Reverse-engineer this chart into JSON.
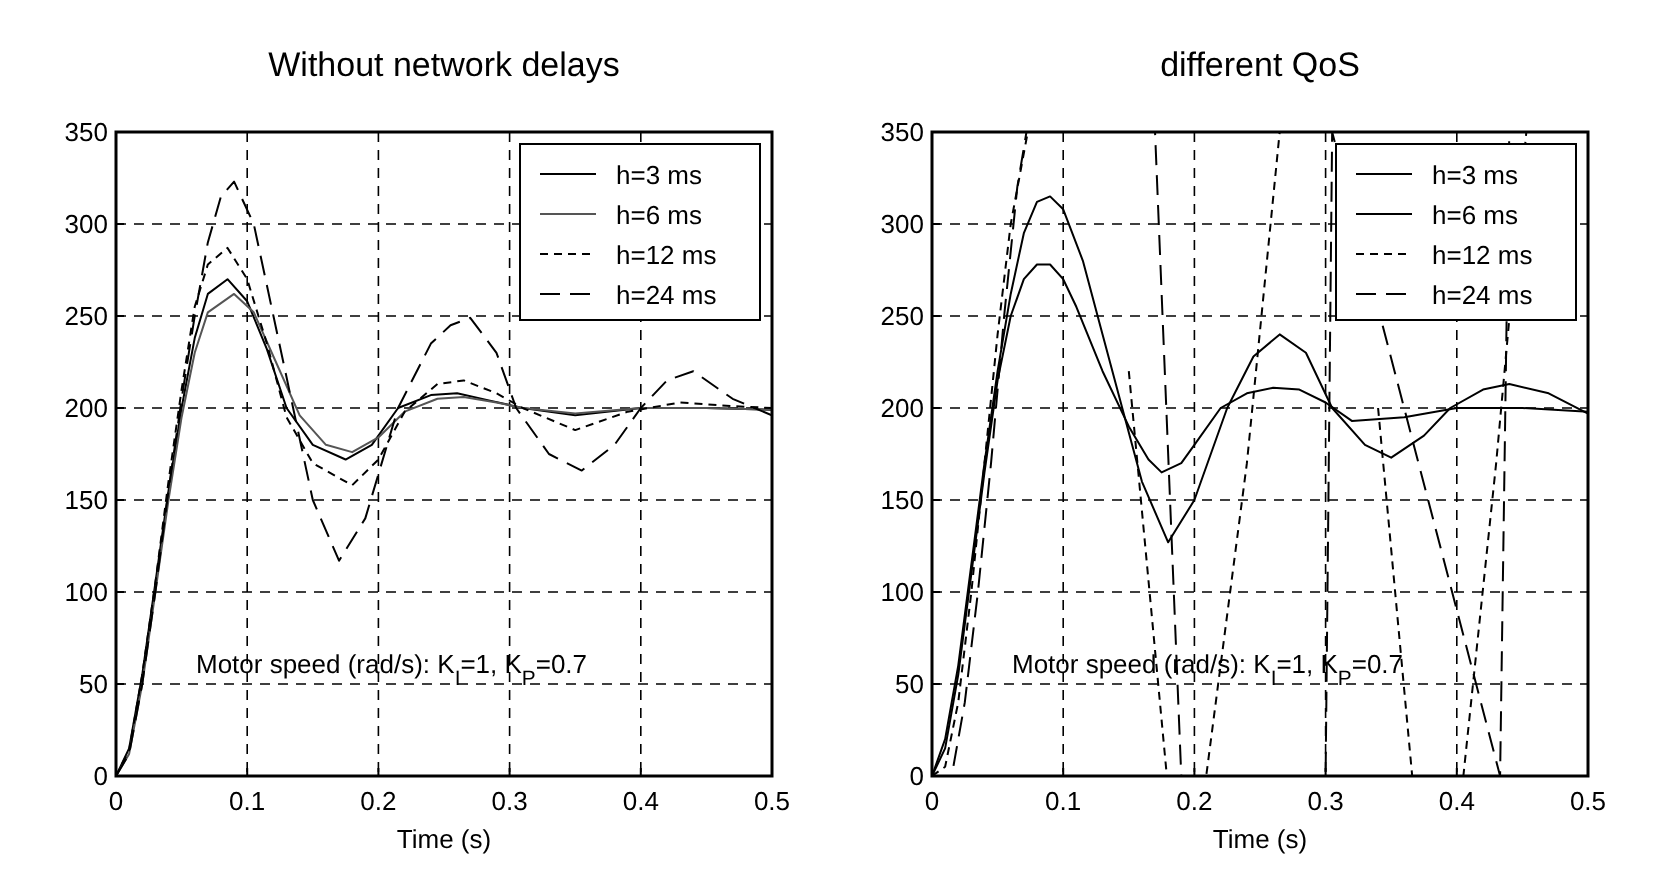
{
  "chart_data": [
    {
      "type": "line",
      "title": "Without network delays",
      "xlabel": "Time (s)",
      "xlim": [
        0,
        0.5
      ],
      "xticks": [
        0,
        0.1,
        0.2,
        0.3,
        0.4,
        0.5
      ],
      "ylim": [
        0,
        350
      ],
      "yticks": [
        0,
        50,
        100,
        150,
        200,
        250,
        300,
        350
      ],
      "grid": true,
      "legend": "top right",
      "annotations": [
        "Motor speed (rad/s): K$_{I}$=1, K$_{P}$=0.7"
      ],
      "series": [
        {
          "name": "h=3 ms",
          "color": "#000000",
          "line_style": "solid",
          "x": [
            0,
            0.01,
            0.02,
            0.03,
            0.04,
            0.05,
            0.06,
            0.07,
            0.085,
            0.1,
            0.115,
            0.13,
            0.15,
            0.175,
            0.195,
            0.215,
            0.24,
            0.26,
            0.285,
            0.31,
            0.35,
            0.4,
            0.45,
            0.5
          ],
          "values": [
            0,
            15,
            55,
            105,
            155,
            200,
            238,
            262,
            270,
            258,
            232,
            200,
            180,
            172,
            180,
            200,
            207,
            208,
            204,
            200,
            196,
            200,
            200,
            199
          ]
        },
        {
          "name": "h=6 ms",
          "color": "#555555",
          "line_style": "solid",
          "x": [
            0,
            0.01,
            0.02,
            0.03,
            0.04,
            0.05,
            0.06,
            0.07,
            0.09,
            0.105,
            0.12,
            0.14,
            0.16,
            0.18,
            0.2,
            0.22,
            0.245,
            0.265,
            0.29,
            0.31,
            0.35,
            0.4,
            0.45,
            0.5
          ],
          "values": [
            0,
            12,
            50,
            100,
            150,
            195,
            230,
            252,
            262,
            252,
            228,
            196,
            180,
            176,
            184,
            198,
            205,
            206,
            203,
            200,
            197,
            200,
            200,
            199
          ]
        },
        {
          "name": "h=12 ms",
          "color": "#000000",
          "line_style": "dashed",
          "x": [
            0,
            0.01,
            0.02,
            0.03,
            0.04,
            0.05,
            0.06,
            0.07,
            0.085,
            0.1,
            0.115,
            0.13,
            0.15,
            0.18,
            0.2,
            0.22,
            0.245,
            0.265,
            0.29,
            0.31,
            0.35,
            0.39,
            0.43,
            0.47,
            0.5
          ],
          "values": [
            0,
            14,
            55,
            105,
            160,
            210,
            255,
            278,
            287,
            270,
            235,
            195,
            170,
            158,
            172,
            198,
            213,
            215,
            208,
            200,
            188,
            198,
            203,
            201,
            200
          ]
        },
        {
          "name": "h=24 ms",
          "color": "#000000",
          "line_style": "dashed",
          "x": [
            0,
            0.01,
            0.02,
            0.03,
            0.04,
            0.05,
            0.06,
            0.07,
            0.08,
            0.09,
            0.105,
            0.12,
            0.135,
            0.15,
            0.17,
            0.19,
            0.215,
            0.24,
            0.255,
            0.27,
            0.29,
            0.305,
            0.33,
            0.355,
            0.38,
            0.4,
            0.42,
            0.44,
            0.47,
            0.5
          ],
          "values": [
            0,
            12,
            50,
            100,
            155,
            205,
            250,
            290,
            315,
            323,
            300,
            250,
            200,
            150,
            117,
            140,
            200,
            235,
            245,
            249,
            230,
            200,
            175,
            166,
            180,
            200,
            215,
            220,
            205,
            196
          ]
        }
      ]
    },
    {
      "type": "line",
      "title": "different QoS",
      "xlabel": "Time (s)",
      "xlim": [
        0,
        0.5
      ],
      "xticks": [
        0,
        0.1,
        0.2,
        0.3,
        0.4,
        0.5
      ],
      "ylim": [
        0,
        350
      ],
      "yticks": [
        0,
        50,
        100,
        150,
        200,
        250,
        300,
        350
      ],
      "grid": true,
      "legend": "top right",
      "annotations": [
        "Motor speed (rad/s): K$_{I}$=1, K$_{P}$=0.7"
      ],
      "series": [
        {
          "name": "h=3 ms",
          "color": "#000000",
          "line_style": "solid",
          "x": [
            0,
            0.01,
            0.02,
            0.03,
            0.04,
            0.05,
            0.06,
            0.07,
            0.08,
            0.09,
            0.1,
            0.115,
            0.13,
            0.145,
            0.16,
            0.18,
            0.2,
            0.225,
            0.245,
            0.265,
            0.285,
            0.305,
            0.33,
            0.35,
            0.375,
            0.395,
            0.42,
            0.44,
            0.47,
            0.5
          ],
          "values": [
            0,
            20,
            60,
            115,
            170,
            220,
            262,
            295,
            312,
            315,
            308,
            280,
            240,
            200,
            160,
            127,
            150,
            200,
            228,
            240,
            230,
            200,
            180,
            173,
            185,
            200,
            210,
            213,
            208,
            197
          ]
        },
        {
          "name": "h=6 ms",
          "color": "#000000",
          "line_style": "solid",
          "x": [
            0,
            0.01,
            0.02,
            0.03,
            0.04,
            0.05,
            0.06,
            0.07,
            0.08,
            0.09,
            0.1,
            0.11,
            0.13,
            0.15,
            0.165,
            0.175,
            0.19,
            0.2,
            0.22,
            0.24,
            0.26,
            0.28,
            0.3,
            0.32,
            0.36,
            0.4,
            0.45,
            0.5
          ],
          "values": [
            0,
            15,
            55,
            110,
            165,
            215,
            250,
            270,
            278,
            278,
            270,
            255,
            220,
            190,
            172,
            165,
            170,
            180,
            200,
            208,
            211,
            210,
            203,
            193,
            195,
            200,
            200,
            198
          ]
        },
        {
          "name": "h=12 ms",
          "color": "#000000",
          "line_style": "dashed",
          "x": [
            0,
            0.01,
            0.02,
            0.03,
            0.04,
            0.05,
            0.06,
            0.073,
            0.12,
            0.15,
            0.179,
            0.209,
            0.24,
            0.265,
            0.317,
            0.34,
            0.366,
            0.405,
            0.43,
            0.453
          ],
          "values": [
            0,
            5,
            40,
            100,
            170,
            240,
            300,
            350,
            null,
            220,
            0,
            0,
            170,
            350,
            null,
            200,
            0,
            0,
            170,
            350
          ]
        },
        {
          "name": "h=24 ms",
          "color": "#000000",
          "line_style": "dashed",
          "x": [
            0,
            0.015,
            0.025,
            0.035,
            0.045,
            0.055,
            0.065,
            0.072,
            0.17,
            0.19,
            0.3,
            0.305,
            0.433,
            0.44
          ],
          "values": [
            0,
            0,
            40,
            100,
            170,
            250,
            320,
            350,
            350,
            0,
            0,
            350,
            0,
            350
          ]
        }
      ]
    }
  ]
}
